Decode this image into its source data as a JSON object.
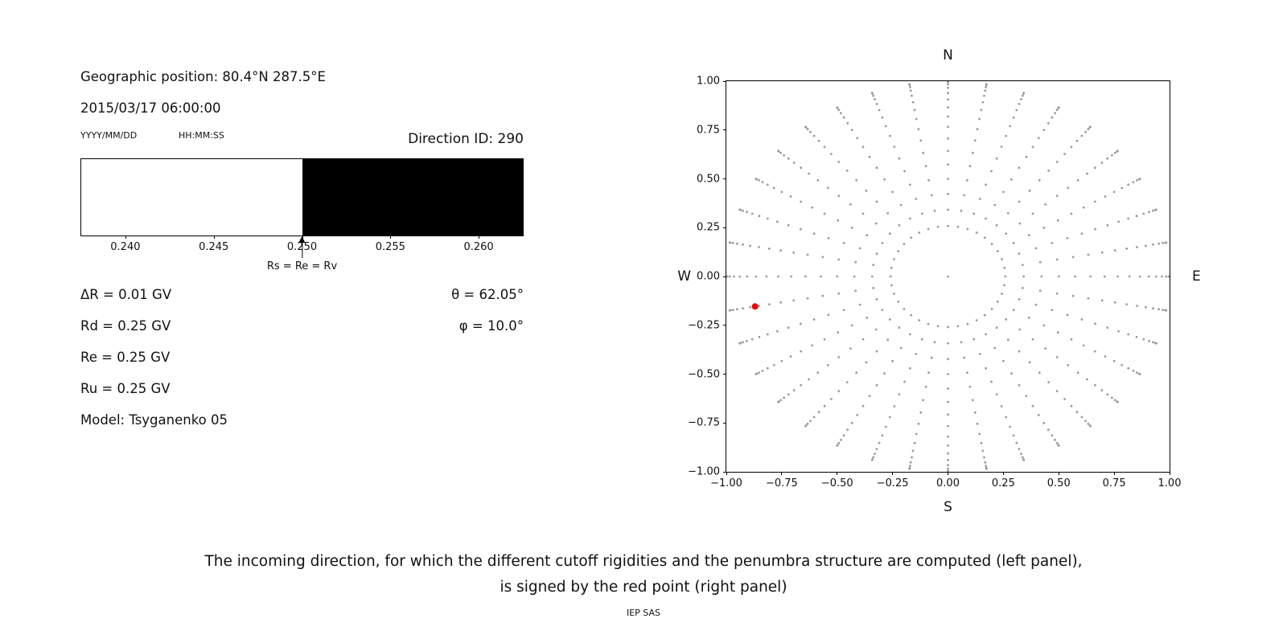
{
  "page": {
    "background": "#ffffff",
    "caption_line1": "The incoming direction, for which the different cutoff rigidities and the penumbra structure are computed (left panel),",
    "caption_line2": "is signed by the red point (right panel)",
    "credit": "IEP SAS"
  },
  "left_panel": {
    "geo_position": "Geographic position: 80.4°N 287.5°E",
    "datetime": "2015/03/17 06:00:00",
    "date_format": "YYYY/MM/DD",
    "time_format": "HH:MM:SS",
    "direction_id": "Direction ID: 290",
    "params": [
      "ΔR = 0.01 GV",
      "Rd = 0.25 GV",
      "Re = 0.25 GV",
      "Ru = 0.25 GV",
      "Model: Tsyganenko 05"
    ],
    "theta": "θ = 62.05°",
    "phi": "φ = 10.0°"
  },
  "chart_data": [
    {
      "type": "bar",
      "name": "penumbra-structure",
      "x_range": [
        0.2375,
        0.2625
      ],
      "xtick_values": [
        0.24,
        0.245,
        0.25,
        0.255,
        0.26
      ],
      "xtick_labels": [
        "0.240",
        "0.245",
        "0.250",
        "0.255",
        "0.260"
      ],
      "segments": [
        {
          "from": 0.2375,
          "to": 0.25,
          "color": "#ffffff",
          "meaning": "allowed rigidities"
        },
        {
          "from": 0.25,
          "to": 0.2625,
          "color": "#000000",
          "meaning": "forbidden rigidities"
        }
      ],
      "arrow": {
        "x": 0.25,
        "label": "Rs = Re = Rv"
      }
    },
    {
      "type": "scatter",
      "name": "incoming-direction-map",
      "compass_labels": {
        "top": "N",
        "bottom": "S",
        "left": "W",
        "right": "E"
      },
      "xlim": [
        -1,
        1
      ],
      "ylim": [
        -1,
        1
      ],
      "xtick_labels": [
        "−1.00",
        "−0.75",
        "−0.50",
        "−0.25",
        "0.00",
        "0.25",
        "0.50",
        "0.75",
        "1.00"
      ],
      "ytick_labels": [
        "1.00",
        "0.75",
        "0.50",
        "0.25",
        "0.00",
        "−0.25",
        "−0.50",
        "−0.75",
        "−1.00"
      ],
      "dot_color": "#9b9b9b",
      "center_dot": true,
      "spokes": {
        "azimuth_start_deg": 0,
        "azimuth_step_deg": 10,
        "azimuth_count": 36,
        "zenith_start_deg": 15,
        "zenith_step_deg": 5,
        "zenith_end_deg": 90,
        "radius_rule": "sin(zenith)"
      },
      "red_point": {
        "x": -0.8703,
        "y": -0.1534,
        "radius": 0.8835,
        "theta_deg": 62.05,
        "phi_deg": 10.0,
        "color": "#e8000b"
      }
    }
  ]
}
